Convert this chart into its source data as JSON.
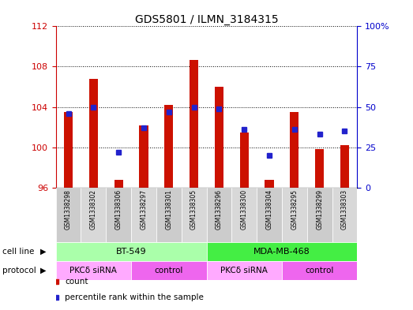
{
  "title": "GDS5801 / ILMN_3184315",
  "samples": [
    "GSM1338298",
    "GSM1338302",
    "GSM1338306",
    "GSM1338297",
    "GSM1338301",
    "GSM1338305",
    "GSM1338296",
    "GSM1338300",
    "GSM1338304",
    "GSM1338295",
    "GSM1338299",
    "GSM1338303"
  ],
  "counts": [
    103.5,
    106.8,
    96.8,
    102.2,
    104.2,
    108.7,
    106.0,
    101.5,
    96.8,
    103.5,
    99.8,
    100.2
  ],
  "percentiles": [
    46,
    50,
    22,
    37,
    47,
    50,
    49,
    36,
    20,
    36,
    33,
    35
  ],
  "ylim_left": [
    96,
    112
  ],
  "ylim_right": [
    0,
    100
  ],
  "yticks_left": [
    96,
    100,
    104,
    108,
    112
  ],
  "yticks_right": [
    0,
    25,
    50,
    75,
    100
  ],
  "bar_color": "#cc1100",
  "dot_color": "#2222cc",
  "bar_bottom": 96,
  "bar_width": 0.35,
  "cell_line_groups": [
    {
      "label": "BT-549",
      "start": 0,
      "end": 6,
      "color": "#aaffaa"
    },
    {
      "label": "MDA-MB-468",
      "start": 6,
      "end": 12,
      "color": "#44ee44"
    }
  ],
  "protocol_groups": [
    {
      "label": "PKCδ siRNA",
      "start": 0,
      "end": 3,
      "color": "#ffaaff"
    },
    {
      "label": "control",
      "start": 3,
      "end": 6,
      "color": "#ee66ee"
    },
    {
      "label": "PKCδ siRNA",
      "start": 6,
      "end": 9,
      "color": "#ffaaff"
    },
    {
      "label": "control",
      "start": 9,
      "end": 12,
      "color": "#ee66ee"
    }
  ],
  "cell_line_label": "cell line",
  "protocol_label": "protocol",
  "legend_count_label": "count",
  "legend_percentile_label": "percentile rank within the sample",
  "left_axis_color": "#cc0000",
  "right_axis_color": "#0000cc",
  "sample_colors": [
    "#cccccc",
    "#d8d8d8"
  ]
}
